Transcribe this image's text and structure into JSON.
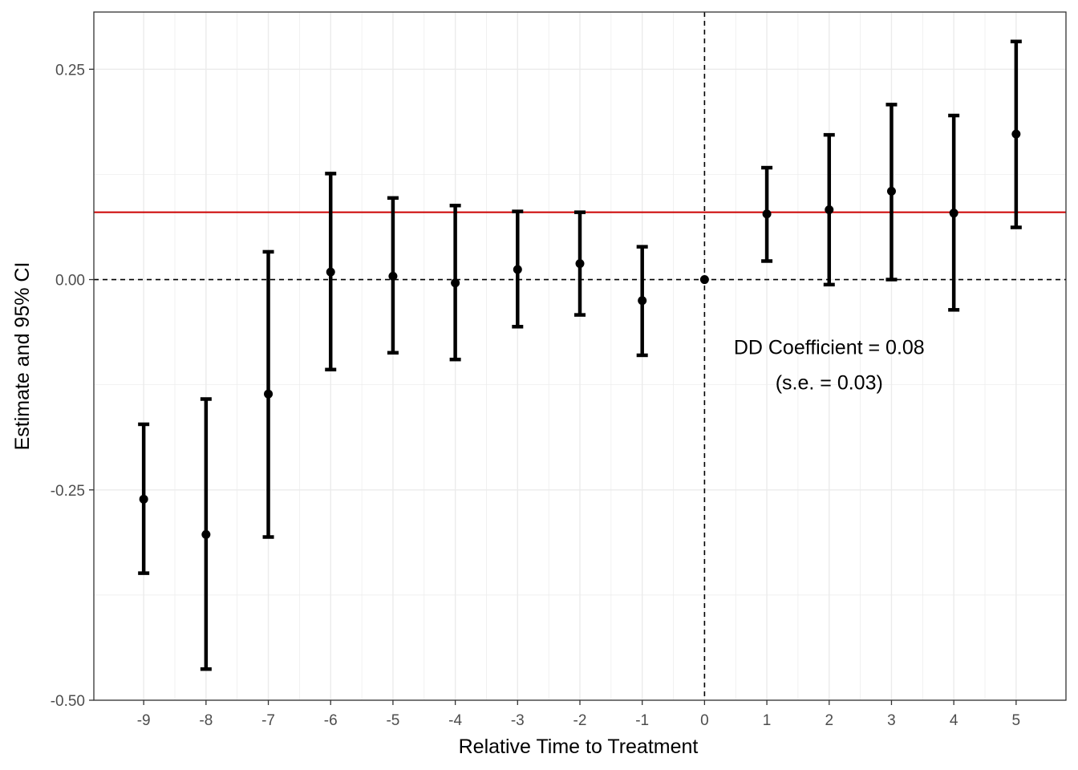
{
  "chart_data": {
    "type": "scatter",
    "title": "",
    "xlabel": "Relative Time to Treatment",
    "ylabel": "Estimate and 95% CI",
    "xlim": [
      -9.8,
      5.8
    ],
    "ylim": [
      -0.5,
      0.318
    ],
    "x_ticks": [
      -9,
      -8,
      -7,
      -6,
      -5,
      -4,
      -3,
      -2,
      -1,
      0,
      1,
      2,
      3,
      4,
      5
    ],
    "x_tick_labels": [
      "-9",
      "-8",
      "-7",
      "-6",
      "-5",
      "-4",
      "-3",
      "-2",
      "-1",
      "0",
      "1",
      "2",
      "3",
      "4",
      "5"
    ],
    "y_ticks": [
      -0.5,
      -0.25,
      0.0,
      0.25
    ],
    "y_tick_labels": [
      "-0.50",
      "-0.25",
      "0.00",
      "0.25"
    ],
    "grid": true,
    "series": [
      {
        "name": "Estimate and 95% CI",
        "x": [
          -9,
          -8,
          -7,
          -6,
          -5,
          -4,
          -3,
          -2,
          -1,
          0,
          1,
          2,
          3,
          4,
          5
        ],
        "estimate": [
          -0.261,
          -0.303,
          -0.136,
          0.009,
          0.004,
          -0.004,
          0.012,
          0.019,
          -0.025,
          0.0,
          0.078,
          0.083,
          0.105,
          0.079,
          0.173
        ],
        "ci_low": [
          -0.349,
          -0.463,
          -0.306,
          -0.107,
          -0.087,
          -0.095,
          -0.056,
          -0.042,
          -0.09,
          0.0,
          0.022,
          -0.006,
          0.0,
          -0.036,
          0.062
        ],
        "ci_high": [
          -0.172,
          -0.142,
          0.033,
          0.126,
          0.097,
          0.088,
          0.081,
          0.08,
          0.039,
          0.0,
          0.133,
          0.172,
          0.208,
          0.195,
          0.283
        ]
      }
    ],
    "reference_lines": {
      "dd_coefficient": 0.08,
      "dd_color": "#cc0000",
      "zero_y": 0.0,
      "zero_x": 0
    },
    "annotation": {
      "line1": "DD Coefficient = 0.08",
      "line2": "(s.e. = 0.03)",
      "x": 2.0,
      "y1": -0.08,
      "y2": -0.122
    },
    "colors": {
      "points": "#000000",
      "grid": "#ebebeb",
      "panel_border": "#333333"
    }
  }
}
